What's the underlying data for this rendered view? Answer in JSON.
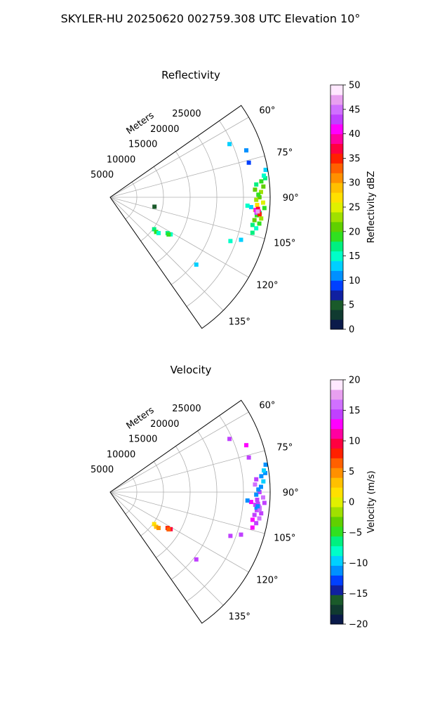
{
  "figure": {
    "suptitle": "SKYLER-HU  20250620  002759.308 UTC Elevation 10°"
  },
  "chart_data": [
    {
      "type": "heatmap",
      "projection": "polar-sector",
      "title": "Reflectivity",
      "radial_label": "Meters",
      "radial_ticks": [
        5000,
        10000,
        15000,
        20000,
        25000
      ],
      "radial_range": [
        0,
        30000
      ],
      "azimuth_range_deg": [
        55,
        145
      ],
      "azimuth_ticks": [
        "60°",
        "75°",
        "90°",
        "105°",
        "120°",
        "135°"
      ],
      "azimuth_tick_values": [
        60,
        75,
        90,
        105,
        120,
        135
      ],
      "grid": true,
      "colorbar": {
        "label": "Reflectivity dBZ",
        "range": [
          0,
          50
        ],
        "ticks": [
          "0",
          "5",
          "10",
          "15",
          "20",
          "25",
          "30",
          "35",
          "40",
          "45",
          "50"
        ],
        "tick_values": [
          0,
          5,
          10,
          15,
          20,
          25,
          30,
          35,
          40,
          45,
          50
        ],
        "stops": [
          "#0a1a4a",
          "#103a30",
          "#1a5a2a",
          "#1020a0",
          "#0040ff",
          "#0090ff",
          "#00d0ff",
          "#00ffc8",
          "#00f080",
          "#30e020",
          "#60d000",
          "#a0e000",
          "#e0f000",
          "#ffe000",
          "#ffc000",
          "#ff9000",
          "#ff6000",
          "#ff2000",
          "#ff0040",
          "#ff00a0",
          "#ff00ff",
          "#c040ff",
          "#d070ff",
          "#e8a0f0",
          "#ffe8ff"
        ]
      },
      "cells": [
        {
          "az": 84.0,
          "r": 28500,
          "v": 18
        },
        {
          "az": 86.0,
          "r": 28800,
          "v": 20
        },
        {
          "az": 88.0,
          "r": 28300,
          "v": 22
        },
        {
          "az": 90.0,
          "r": 28000,
          "v": 20
        },
        {
          "az": 92.0,
          "r": 28700,
          "v": 24
        },
        {
          "az": 94.0,
          "r": 29000,
          "v": 18
        },
        {
          "az": 96.0,
          "r": 28200,
          "v": 16
        },
        {
          "az": 98.0,
          "r": 28600,
          "v": 22
        },
        {
          "az": 85.0,
          "r": 27500,
          "v": 16
        },
        {
          "az": 87.0,
          "r": 27200,
          "v": 20
        },
        {
          "az": 89.0,
          "r": 27800,
          "v": 18
        },
        {
          "az": 91.0,
          "r": 27400,
          "v": 22
        },
        {
          "az": 93.0,
          "r": 27600,
          "v": 26
        },
        {
          "az": 95.0,
          "r": 27300,
          "v": 24
        },
        {
          "az": 97.0,
          "r": 27700,
          "v": 18
        },
        {
          "az": 99.0,
          "r": 27400,
          "v": 20
        },
        {
          "az": 101.0,
          "r": 27200,
          "v": 16
        },
        {
          "az": 100.0,
          "r": 28400,
          "v": 18
        },
        {
          "az": 102.0,
          "r": 28000,
          "v": 14
        },
        {
          "az": 104.0,
          "r": 27500,
          "v": 16
        },
        {
          "az": 83.0,
          "r": 29300,
          "v": 16
        },
        {
          "az": 82.0,
          "r": 29100,
          "v": 14
        },
        {
          "az": 80.0,
          "r": 29600,
          "v": 12
        },
        {
          "az": 95.5,
          "r": 28000,
          "v": 38
        },
        {
          "az": 96.0,
          "r": 27600,
          "v": 42
        },
        {
          "az": 95.0,
          "r": 27400,
          "v": 40
        },
        {
          "az": 94.5,
          "r": 27800,
          "v": 36
        },
        {
          "az": 96.5,
          "r": 28200,
          "v": 34
        },
        {
          "az": 95.5,
          "r": 27800,
          "v": 46
        },
        {
          "az": 94.0,
          "r": 26500,
          "v": 12
        },
        {
          "az": 93.5,
          "r": 25800,
          "v": 14
        },
        {
          "az": 66.0,
          "r": 24500,
          "v": 12
        },
        {
          "az": 71.0,
          "r": 27000,
          "v": 10
        },
        {
          "az": 76.0,
          "r": 26800,
          "v": 8
        },
        {
          "az": 110.0,
          "r": 24000,
          "v": 14
        },
        {
          "az": 108.0,
          "r": 25800,
          "v": 12
        },
        {
          "az": 102.0,
          "r": 8500,
          "v": 4
        },
        {
          "az": 126.0,
          "r": 10200,
          "v": 16
        },
        {
          "az": 127.0,
          "r": 10800,
          "v": 18
        },
        {
          "az": 126.5,
          "r": 11300,
          "v": 14
        },
        {
          "az": 122.0,
          "r": 12700,
          "v": 16
        },
        {
          "az": 121.5,
          "r": 13300,
          "v": 14
        },
        {
          "az": 122.5,
          "r": 13000,
          "v": 18
        },
        {
          "az": 128.0,
          "r": 20500,
          "v": 12
        }
      ]
    },
    {
      "type": "heatmap",
      "projection": "polar-sector",
      "title": "Velocity",
      "radial_label": "Meters",
      "radial_ticks": [
        5000,
        10000,
        15000,
        20000,
        25000
      ],
      "radial_range": [
        0,
        30000
      ],
      "azimuth_range_deg": [
        55,
        145
      ],
      "azimuth_ticks": [
        "60°",
        "75°",
        "90°",
        "105°",
        "120°",
        "135°"
      ],
      "azimuth_tick_values": [
        60,
        75,
        90,
        105,
        120,
        135
      ],
      "grid": true,
      "colorbar": {
        "label": "Velocity (m/s)",
        "range": [
          -20,
          20
        ],
        "ticks": [
          "−20",
          "−15",
          "−10",
          "−5",
          "0",
          "5",
          "10",
          "15",
          "20"
        ],
        "tick_values": [
          -20,
          -15,
          -10,
          -5,
          0,
          5,
          10,
          15,
          20
        ],
        "stops": [
          "#0a1a4a",
          "#103a30",
          "#1a5a2a",
          "#1020a0",
          "#0040ff",
          "#0090ff",
          "#00d0ff",
          "#00ffc8",
          "#00f080",
          "#30e020",
          "#60d000",
          "#a0e000",
          "#e0f000",
          "#ffe000",
          "#ffc000",
          "#ff9000",
          "#ff6000",
          "#ff2000",
          "#ff0040",
          "#ff00a0",
          "#ff00ff",
          "#c040ff",
          "#d070ff",
          "#e8a0f0",
          "#ffe8ff"
        ]
      },
      "cells": [
        {
          "az": 84.0,
          "r": 28500,
          "v": -12
        },
        {
          "az": 86.0,
          "r": 28800,
          "v": -10
        },
        {
          "az": 88.0,
          "r": 28300,
          "v": -12
        },
        {
          "az": 90.0,
          "r": 28000,
          "v": 15
        },
        {
          "az": 92.0,
          "r": 28700,
          "v": 16
        },
        {
          "az": 94.0,
          "r": 29000,
          "v": 14
        },
        {
          "az": 96.0,
          "r": 28200,
          "v": 16
        },
        {
          "az": 98.0,
          "r": 28600,
          "v": 14
        },
        {
          "az": 85.0,
          "r": 27500,
          "v": 15
        },
        {
          "az": 87.0,
          "r": 27200,
          "v": 16
        },
        {
          "az": 89.0,
          "r": 27800,
          "v": -11
        },
        {
          "az": 91.0,
          "r": 27400,
          "v": -12
        },
        {
          "az": 93.0,
          "r": 27600,
          "v": 14
        },
        {
          "az": 95.0,
          "r": 27300,
          "v": 16
        },
        {
          "az": 97.0,
          "r": 27700,
          "v": 15
        },
        {
          "az": 99.0,
          "r": 27400,
          "v": 14
        },
        {
          "az": 101.0,
          "r": 27200,
          "v": 12
        },
        {
          "az": 100.0,
          "r": 28400,
          "v": 16
        },
        {
          "az": 102.0,
          "r": 28000,
          "v": 14
        },
        {
          "az": 104.0,
          "r": 27500,
          "v": 12
        },
        {
          "az": 83.0,
          "r": 29300,
          "v": -12
        },
        {
          "az": 82.0,
          "r": 29100,
          "v": -10
        },
        {
          "az": 80.0,
          "r": 29600,
          "v": -12
        },
        {
          "az": 95.5,
          "r": 28000,
          "v": 16
        },
        {
          "az": 96.0,
          "r": 27600,
          "v": -12
        },
        {
          "az": 95.0,
          "r": 27400,
          "v": 14
        },
        {
          "az": 94.5,
          "r": 27800,
          "v": 15
        },
        {
          "az": 96.5,
          "r": 28200,
          "v": 16
        },
        {
          "az": 95.5,
          "r": 27800,
          "v": -11
        },
        {
          "az": 94.0,
          "r": 26500,
          "v": 12
        },
        {
          "az": 93.5,
          "r": 25800,
          "v": -12
        },
        {
          "az": 66.0,
          "r": 24500,
          "v": 14
        },
        {
          "az": 71.0,
          "r": 27000,
          "v": 12
        },
        {
          "az": 76.0,
          "r": 26800,
          "v": 14
        },
        {
          "az": 110.0,
          "r": 24000,
          "v": 14
        },
        {
          "az": 108.0,
          "r": 25800,
          "v": 15
        },
        {
          "az": 126.0,
          "r": 10200,
          "v": 2
        },
        {
          "az": 127.0,
          "r": 10800,
          "v": 3
        },
        {
          "az": 126.5,
          "r": 11300,
          "v": 4
        },
        {
          "az": 122.0,
          "r": 12700,
          "v": 8
        },
        {
          "az": 121.5,
          "r": 13300,
          "v": 9
        },
        {
          "az": 122.5,
          "r": 13000,
          "v": 7
        },
        {
          "az": 128.0,
          "r": 20500,
          "v": 14
        }
      ]
    }
  ]
}
